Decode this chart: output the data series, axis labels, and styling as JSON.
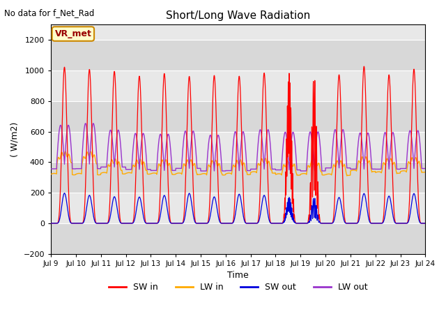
{
  "title": "Short/Long Wave Radiation",
  "top_left_text": "No data for f_Net_Rad",
  "legend_box_label": "VR_met",
  "xlabel": "Time",
  "ylabel": "( W/m2)",
  "ylim": [
    -200,
    1300
  ],
  "yticks": [
    -200,
    0,
    200,
    400,
    600,
    800,
    1000,
    1200
  ],
  "xlim": [
    9,
    24
  ],
  "xtick_days": [
    9,
    10,
    11,
    12,
    13,
    14,
    15,
    16,
    17,
    18,
    19,
    20,
    21,
    22,
    23,
    24
  ],
  "colors": {
    "SW_in": "#ff0000",
    "LW_in": "#ffaa00",
    "SW_out": "#0000dd",
    "LW_out": "#9933cc"
  },
  "legend_items": [
    "SW in",
    "LW in",
    "SW out",
    "LW out"
  ],
  "legend_colors": [
    "#ff0000",
    "#ffaa00",
    "#0000dd",
    "#9933cc"
  ],
  "band_colors": [
    "#d8d8d8",
    "#e8e8e8"
  ],
  "plot_bg": "#e0e0e0",
  "grid_color": "#ffffff"
}
